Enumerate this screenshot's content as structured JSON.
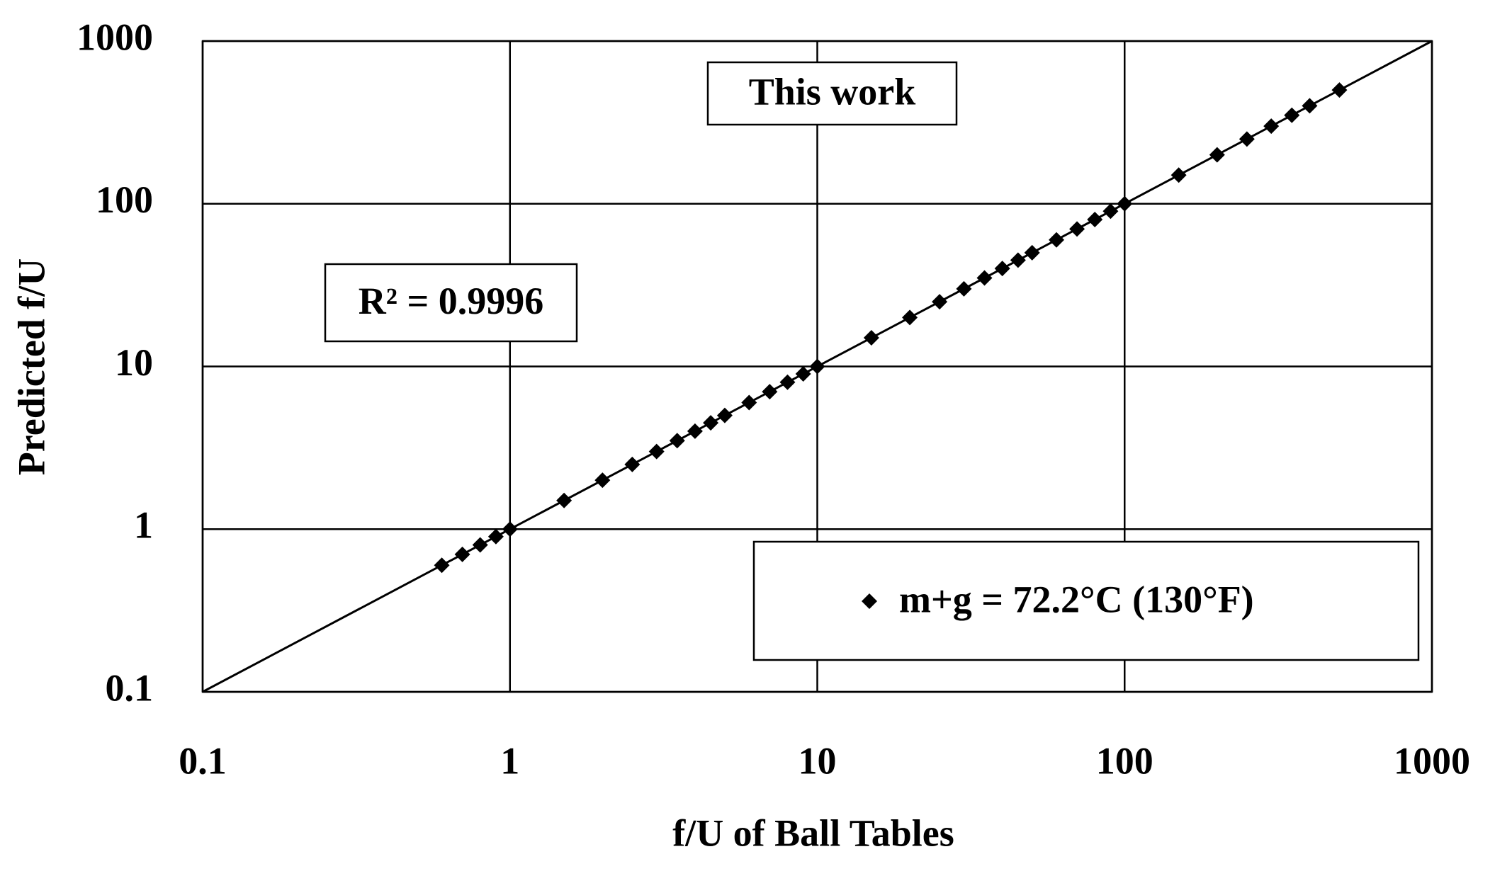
{
  "chart_data": {
    "type": "scatter",
    "xlabel": "f/U of Ball Tables",
    "ylabel": "Predicted f/U",
    "annotations": [
      "This work",
      "R² = 0.9996"
    ],
    "xscale": "log",
    "yscale": "log",
    "xlim": [
      0.1,
      1000
    ],
    "ylim": [
      0.1,
      1000
    ],
    "xticks": [
      0.1,
      1,
      10,
      100,
      1000
    ],
    "yticks": [
      0.1,
      1,
      10,
      100,
      1000
    ],
    "grid": true,
    "legend_loc": "lower right",
    "trendline": {
      "x": [
        0.1,
        1000
      ],
      "y": [
        0.1,
        1000
      ],
      "color": "#000000"
    },
    "series": [
      {
        "name": "m+g = 72.2°C (130°F)",
        "color": "#000000",
        "x": [
          0.6,
          0.7,
          0.8,
          0.9,
          1,
          1.5,
          2,
          2.5,
          3,
          3.5,
          4,
          4.5,
          5,
          6,
          7,
          8,
          9,
          10,
          15,
          20,
          25,
          30,
          35,
          40,
          45,
          50,
          60,
          70,
          80,
          90,
          100,
          150,
          200,
          250,
          300,
          350,
          400,
          500
        ],
        "y": [
          0.6,
          0.7,
          0.8,
          0.9,
          1,
          1.5,
          2,
          2.5,
          3,
          3.5,
          4,
          4.5,
          5,
          6,
          7,
          8,
          9,
          10,
          15,
          20,
          25,
          30,
          35,
          40,
          45,
          50,
          60,
          70,
          80,
          90,
          100,
          150,
          200,
          250,
          300,
          350,
          400,
          500
        ]
      }
    ]
  }
}
